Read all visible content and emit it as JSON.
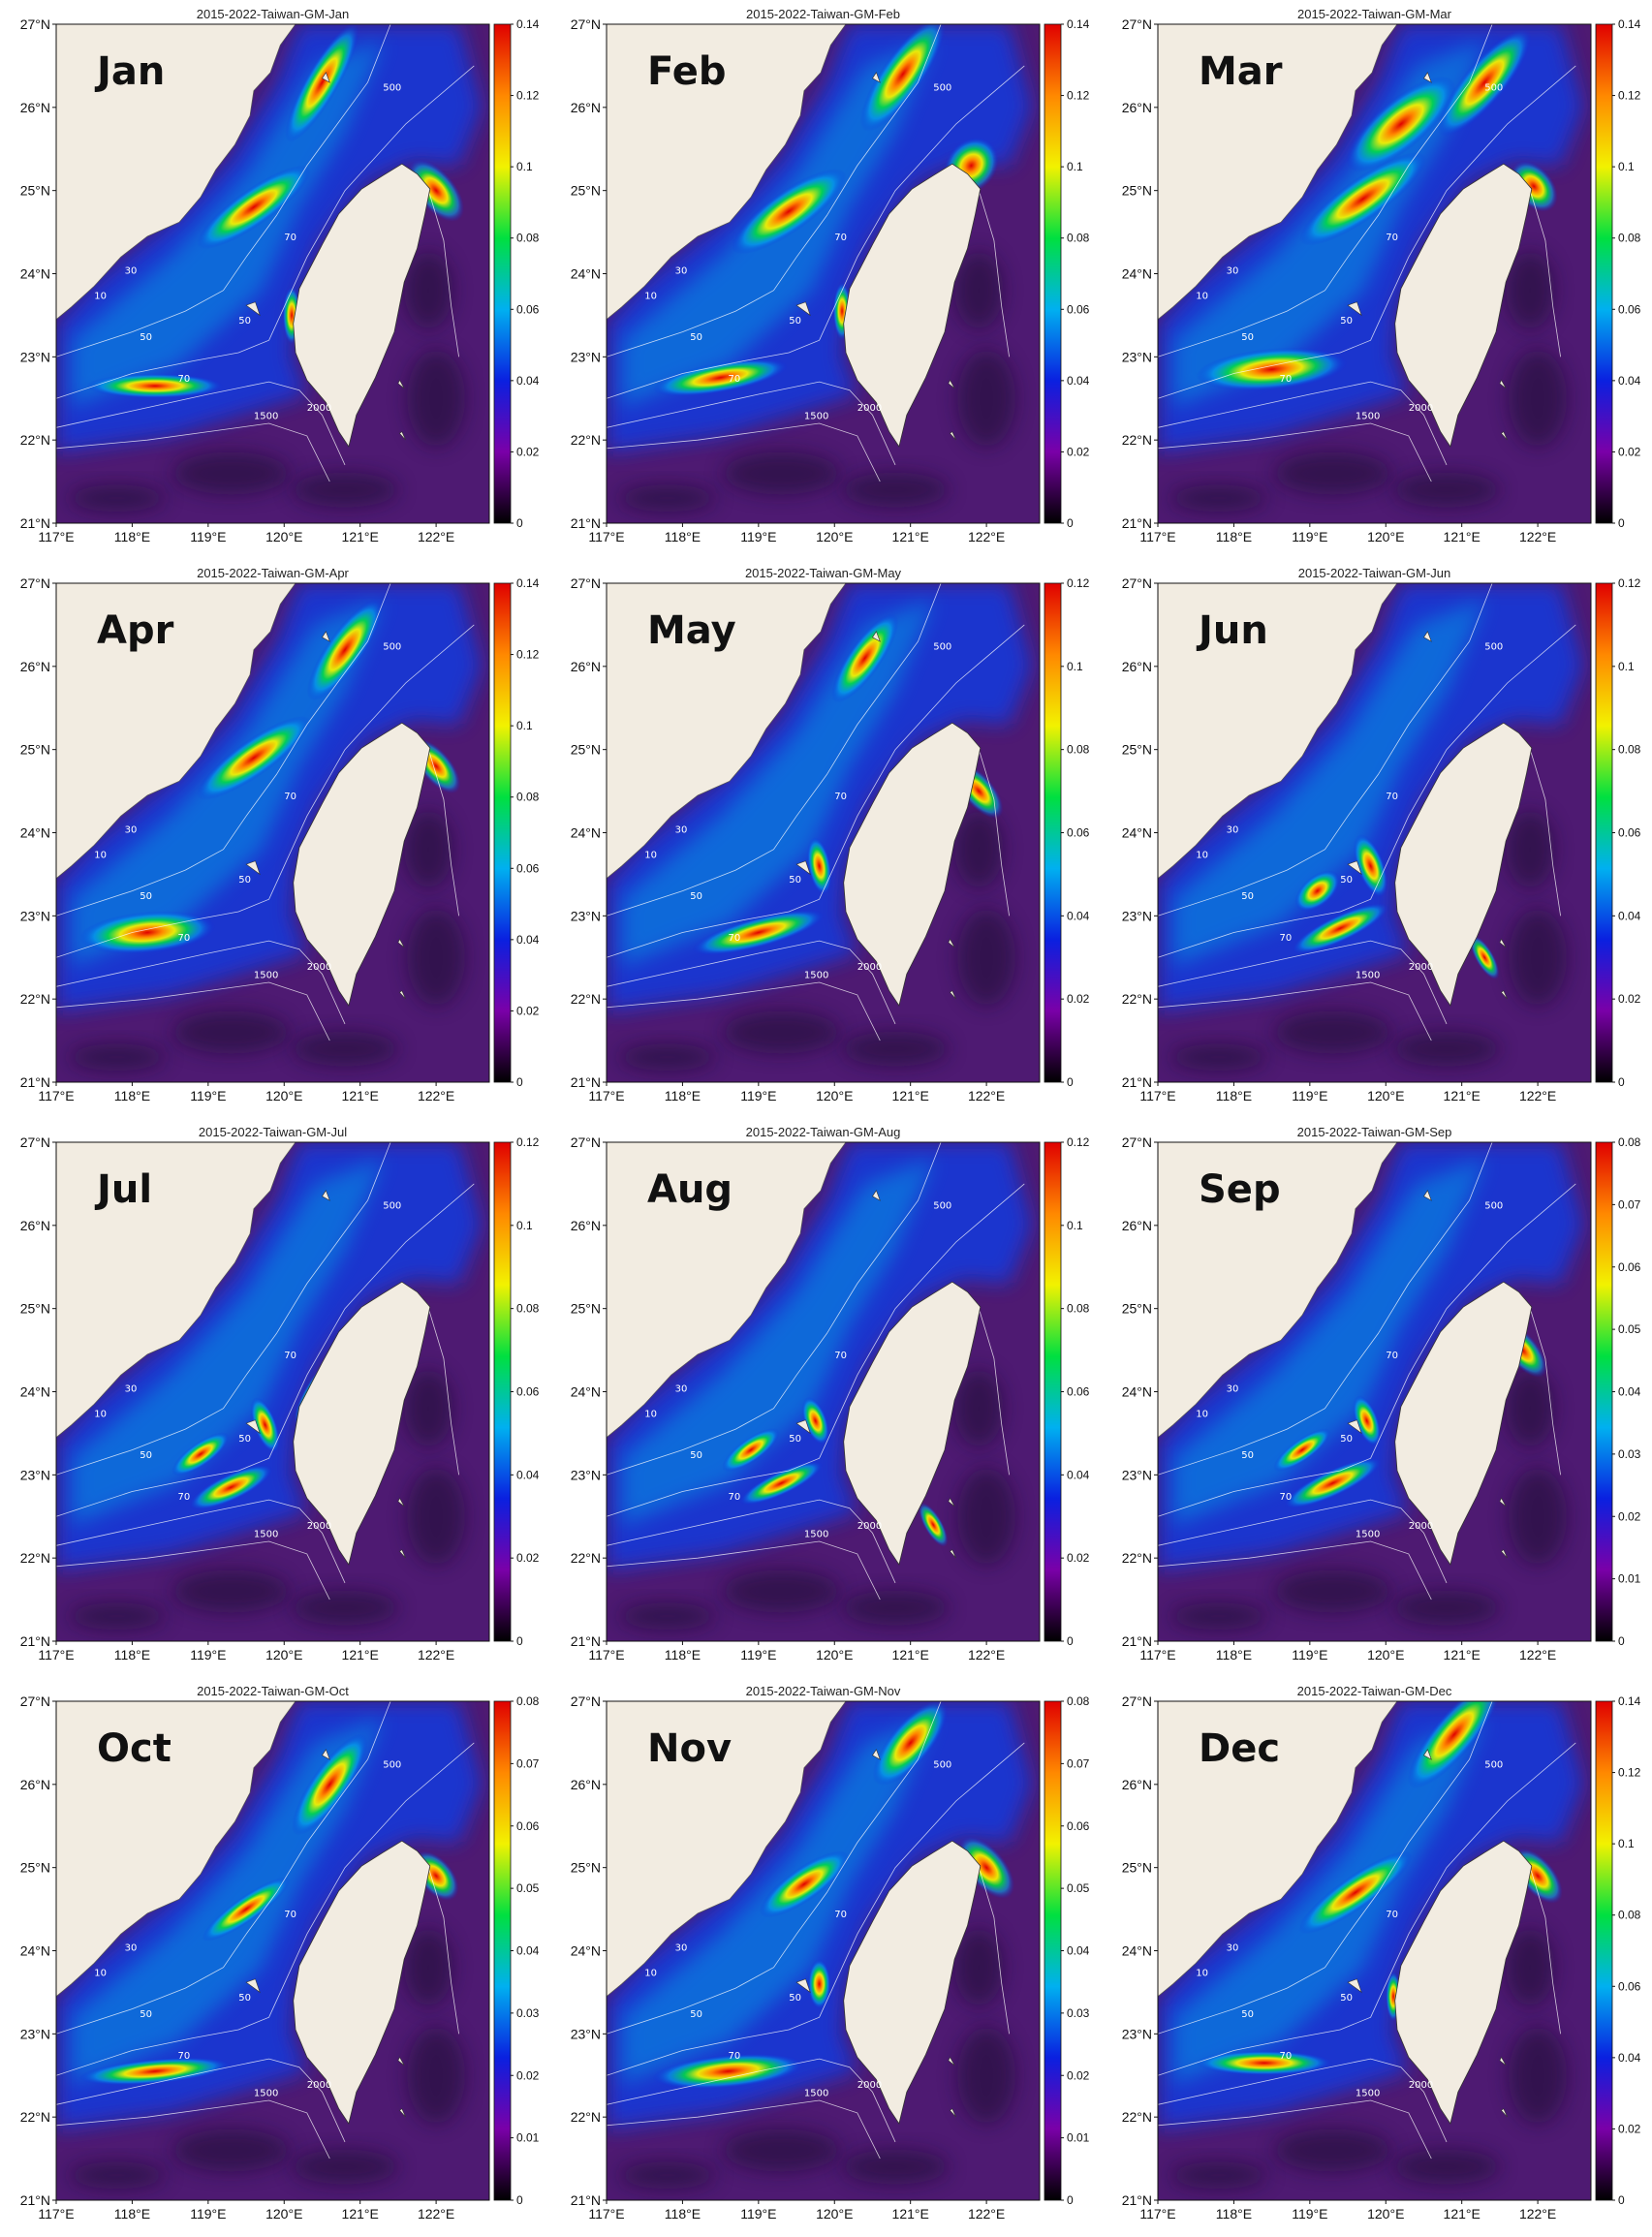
{
  "figure": {
    "lat_ticks": [
      "21°N",
      "22°N",
      "23°N",
      "24°N",
      "25°N",
      "26°N",
      "27°N"
    ],
    "lon_ticks": [
      "117°E",
      "118°E",
      "119°E",
      "120°E",
      "121°E",
      "122°E"
    ],
    "depth_labels": [
      "10",
      "30",
      "50",
      "50",
      "70",
      "70",
      "500",
      "1500",
      "2000"
    ],
    "colors": {
      "land": "#f2ece1",
      "deep_water": "#4e1a72",
      "colormap": [
        "#000000",
        "#7a00a8",
        "#0a20e0",
        "#00b0f0",
        "#00e040",
        "#f2f200",
        "#ff8800",
        "#e00000"
      ]
    }
  },
  "panels": [
    {
      "title": "2015-2022-Taiwan-GM-Jan",
      "month": "Jan",
      "cb_ticks": [
        "0",
        "0.02",
        "0.04",
        "0.06",
        "0.08",
        "0.1",
        "0.12",
        "0.14"
      ],
      "cb_max": 0.14
    },
    {
      "title": "2015-2022-Taiwan-GM-Feb",
      "month": "Feb",
      "cb_ticks": [
        "0",
        "0.02",
        "0.04",
        "0.06",
        "0.08",
        "0.1",
        "0.12",
        "0.14"
      ],
      "cb_max": 0.14
    },
    {
      "title": "2015-2022-Taiwan-GM-Mar",
      "month": "Mar",
      "cb_ticks": [
        "0",
        "0.02",
        "0.04",
        "0.06",
        "0.08",
        "0.1",
        "0.12",
        "0.14"
      ],
      "cb_max": 0.14
    },
    {
      "title": "2015-2022-Taiwan-GM-Apr",
      "month": "Apr",
      "cb_ticks": [
        "0",
        "0.02",
        "0.04",
        "0.06",
        "0.08",
        "0.1",
        "0.12",
        "0.14"
      ],
      "cb_max": 0.14
    },
    {
      "title": "2015-2022-Taiwan-GM-May",
      "month": "May",
      "cb_ticks": [
        "0",
        "0.02",
        "0.04",
        "0.06",
        "0.08",
        "0.1",
        "0.12"
      ],
      "cb_max": 0.12
    },
    {
      "title": "2015-2022-Taiwan-GM-Jun",
      "month": "Jun",
      "cb_ticks": [
        "0",
        "0.02",
        "0.04",
        "0.06",
        "0.08",
        "0.1",
        "0.12"
      ],
      "cb_max": 0.12
    },
    {
      "title": "2015-2022-Taiwan-GM-Jul",
      "month": "Jul",
      "cb_ticks": [
        "0",
        "0.02",
        "0.04",
        "0.06",
        "0.08",
        "0.1",
        "0.12"
      ],
      "cb_max": 0.12
    },
    {
      "title": "2015-2022-Taiwan-GM-Aug",
      "month": "Aug",
      "cb_ticks": [
        "0",
        "0.02",
        "0.04",
        "0.06",
        "0.08",
        "0.1",
        "0.12"
      ],
      "cb_max": 0.12
    },
    {
      "title": "2015-2022-Taiwan-GM-Sep",
      "month": "Sep",
      "cb_ticks": [
        "0",
        "0.01",
        "0.02",
        "0.03",
        "0.04",
        "0.05",
        "0.06",
        "0.07",
        "0.08"
      ],
      "cb_max": 0.08
    },
    {
      "title": "2015-2022-Taiwan-GM-Oct",
      "month": "Oct",
      "cb_ticks": [
        "0",
        "0.01",
        "0.02",
        "0.03",
        "0.04",
        "0.05",
        "0.06",
        "0.07",
        "0.08"
      ],
      "cb_max": 0.08
    },
    {
      "title": "2015-2022-Taiwan-GM-Nov",
      "month": "Nov",
      "cb_ticks": [
        "0",
        "0.01",
        "0.02",
        "0.03",
        "0.04",
        "0.05",
        "0.06",
        "0.07",
        "0.08"
      ],
      "cb_max": 0.08
    },
    {
      "title": "2015-2022-Taiwan-GM-Dec",
      "month": "Dec",
      "cb_ticks": [
        "0",
        "0.02",
        "0.04",
        "0.06",
        "0.08",
        "0.1",
        "0.12",
        "0.14"
      ],
      "cb_max": 0.14
    }
  ]
}
